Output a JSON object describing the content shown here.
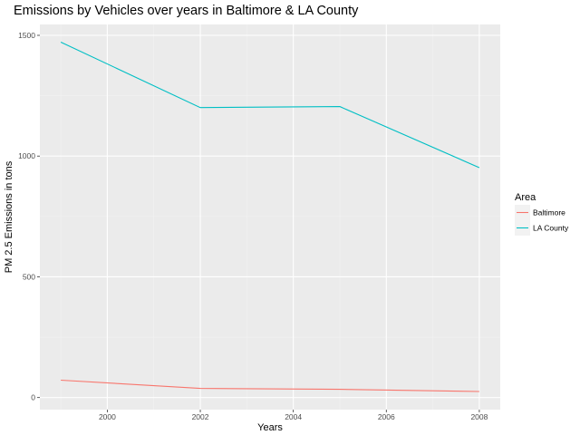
{
  "chart_data": {
    "type": "line",
    "title": "Emissions by Vehicles over years in Baltimore & LA County",
    "xlabel": "Years",
    "ylabel": "PM 2.5 Emissions in tons",
    "x": [
      1999,
      2002,
      2005,
      2008
    ],
    "xlim": [
      1998.55,
      2008.45
    ],
    "ylim": [
      -50,
      1545
    ],
    "xticks": [
      2000,
      2002,
      2004,
      2006,
      2008
    ],
    "xtick_labels": [
      "2000",
      "2002",
      "2004",
      "2006",
      "2008"
    ],
    "yticks": [
      0,
      500,
      1000,
      1500
    ],
    "ytick_labels": [
      "0",
      "500",
      "1000",
      "1500"
    ],
    "grid": true,
    "legend": {
      "title": "Area",
      "placement": "right"
    },
    "series": [
      {
        "name": "Baltimore",
        "color": "#F8766D",
        "values": [
          72,
          38,
          34,
          25
        ]
      },
      {
        "name": "LA County",
        "color": "#00BFC4",
        "values": [
          1472,
          1201,
          1205,
          952
        ]
      }
    ]
  }
}
